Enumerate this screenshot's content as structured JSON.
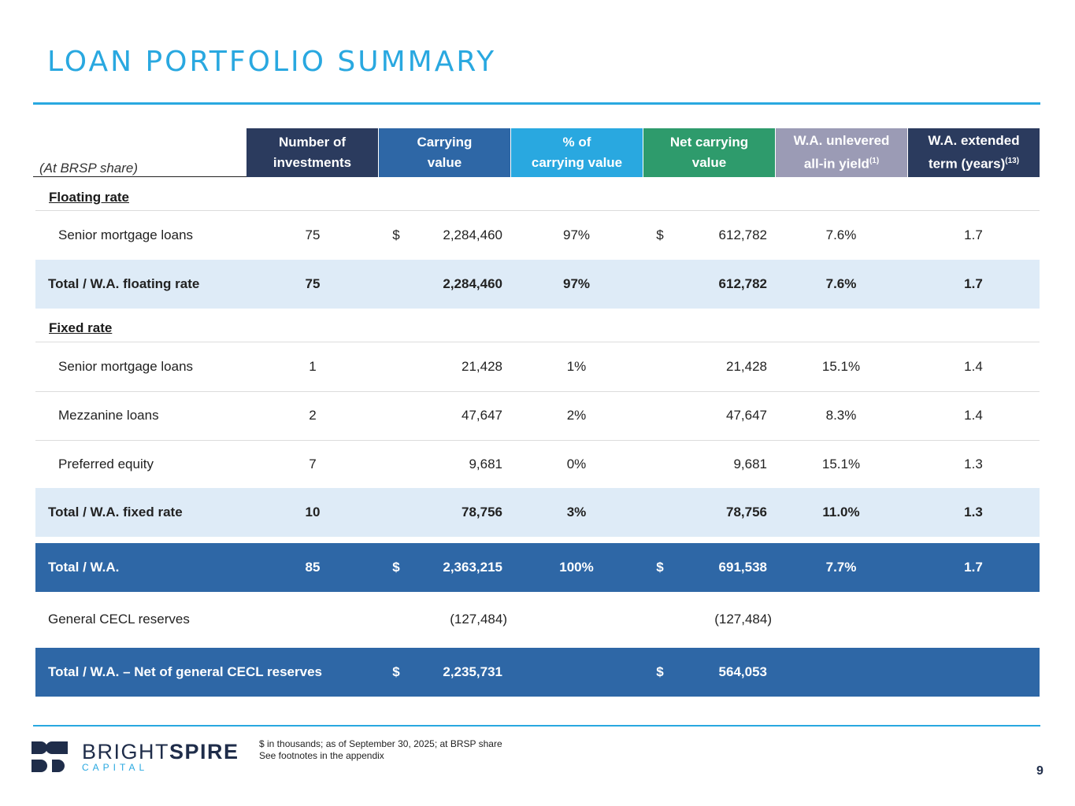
{
  "title": "LOAN PORTFOLIO SUMMARY",
  "table": {
    "share_label": "(At BRSP share)",
    "headers": [
      {
        "line1": "Number of",
        "line2": "investments",
        "sup": "",
        "color": "#2b3b5e"
      },
      {
        "line1": "Carrying",
        "line2": "value",
        "sup": "",
        "color": "#2e67a6"
      },
      {
        "line1": "% of",
        "line2": "carrying value",
        "sup": "",
        "color": "#29a8e0"
      },
      {
        "line1": "Net carrying",
        "line2": "value",
        "sup": "",
        "color": "#2e9b6c"
      },
      {
        "line1": "W.A. unlevered",
        "line2": "all-in yield",
        "sup": "(1)",
        "color": "#9b9bb5"
      },
      {
        "line1": "W.A. extended",
        "line2": "term (years)",
        "sup": "(13)",
        "color": "#2b3b5e"
      }
    ],
    "floating_section": "Floating rate",
    "floating_rows": [
      {
        "label": "Senior mortgage loans",
        "count": "75",
        "dollar": "$",
        "carrying": "2,284,460",
        "pct": "97%",
        "dollar2": "$",
        "net": "612,782",
        "yield": "7.6%",
        "term": "1.7"
      }
    ],
    "floating_total": {
      "label": "Total / W.A. floating rate",
      "count": "75",
      "carrying": "2,284,460",
      "pct": "97%",
      "net": "612,782",
      "yield": "7.6%",
      "term": "1.7"
    },
    "fixed_section": "Fixed rate",
    "fixed_rows": [
      {
        "label": "Senior mortgage loans",
        "count": "1",
        "carrying": "21,428",
        "pct": "1%",
        "net": "21,428",
        "yield": "15.1%",
        "term": "1.4"
      },
      {
        "label": "Mezzanine loans",
        "count": "2",
        "carrying": "47,647",
        "pct": "2%",
        "net": "47,647",
        "yield": "8.3%",
        "term": "1.4"
      },
      {
        "label": "Preferred equity",
        "count": "7",
        "carrying": "9,681",
        "pct": "0%",
        "net": "9,681",
        "yield": "15.1%",
        "term": "1.3"
      }
    ],
    "fixed_total": {
      "label": "Total / W.A. fixed rate",
      "count": "10",
      "carrying": "78,756",
      "pct": "3%",
      "net": "78,756",
      "yield": "11.0%",
      "term": "1.3"
    },
    "grand_total": {
      "label": "Total / W.A.",
      "count": "85",
      "dollar": "$",
      "carrying": "2,363,215",
      "pct": "100%",
      "dollar2": "$",
      "net": "691,538",
      "yield": "7.7%",
      "term": "1.7"
    },
    "cecl": {
      "label": "General CECL reserves",
      "carrying": "(127,484)",
      "net": "(127,484)"
    },
    "net_total": {
      "label": "Total / W.A. – Net of general CECL reserves",
      "dollar": "$",
      "carrying": "2,235,731",
      "dollar2": "$",
      "net": "564,053"
    }
  },
  "footer": {
    "logo_word_light": "BRIGHT",
    "logo_word_bold": "SPIRE",
    "logo_sub": "CAPITAL",
    "note1": "$ in thousands; as of September 30, 2025; at BRSP share",
    "note2": "See footnotes in the appendix",
    "page_number": "9"
  },
  "colors": {
    "accent": "#29a8e0",
    "navy": "#2b3b5e",
    "blue": "#2e67a6",
    "green": "#2e9b6c",
    "lavender": "#9b9bb5",
    "subtotal_bg": "#deebf7"
  }
}
